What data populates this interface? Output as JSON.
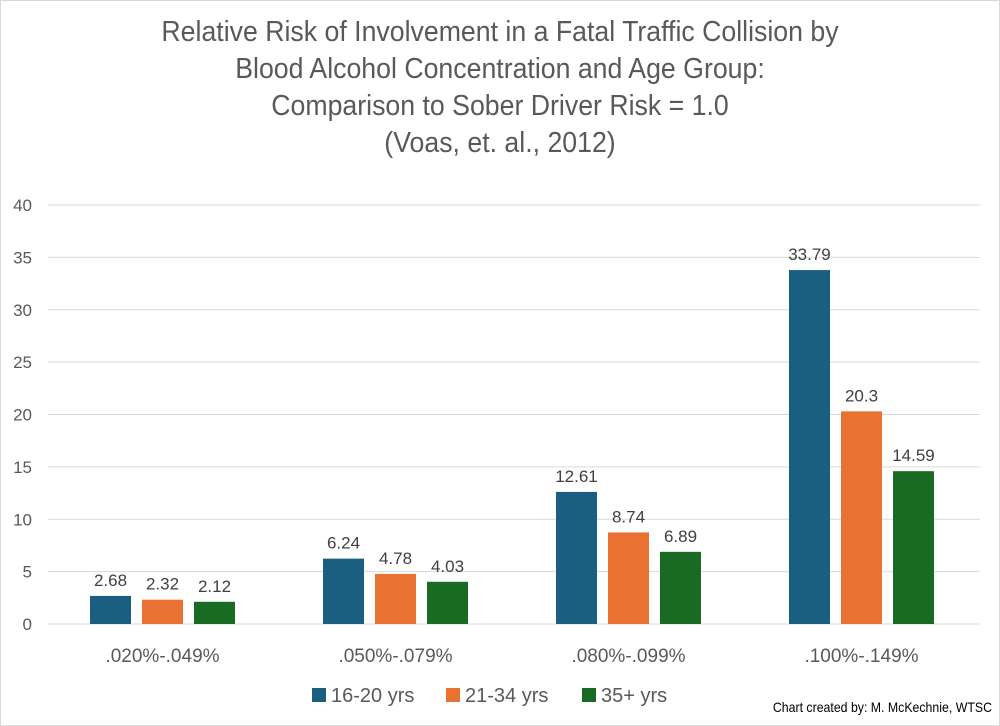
{
  "chart_data": {
    "type": "bar",
    "title_lines": [
      "Relative Risk of Involvement in a Fatal Traffic Collision by",
      "Blood Alcohol Concentration and Age Group:",
      "Comparison to Sober Driver Risk = 1.0",
      "(Voas, et. al., 2012)"
    ],
    "xlabel": "",
    "ylabel": "",
    "ylim": [
      0,
      40
    ],
    "yticks": [
      0,
      5,
      10,
      15,
      20,
      25,
      30,
      35,
      40
    ],
    "grid": true,
    "legend_position": "bottom",
    "categories": [
      ".020%-.049%",
      ".050%-.079%",
      ".080%-.099%",
      ".100%-.149%"
    ],
    "series": [
      {
        "name": "16-20 yrs",
        "color": "#1a5e80",
        "values": [
          2.68,
          6.24,
          12.61,
          33.79
        ],
        "labels": [
          "2.68",
          "6.24",
          "12.61",
          "33.79"
        ]
      },
      {
        "name": "21-34 yrs",
        "color": "#e97132",
        "values": [
          2.32,
          4.78,
          8.74,
          20.3
        ],
        "labels": [
          "2.32",
          "4.78",
          "8.74",
          "20.3"
        ]
      },
      {
        "name": "35+ yrs",
        "color": "#196b24",
        "values": [
          2.12,
          4.03,
          6.89,
          14.59
        ],
        "labels": [
          "2.12",
          "4.03",
          "6.89",
          "14.59"
        ]
      }
    ]
  },
  "credit": "Chart created by: M. McKechnie, WTSC"
}
